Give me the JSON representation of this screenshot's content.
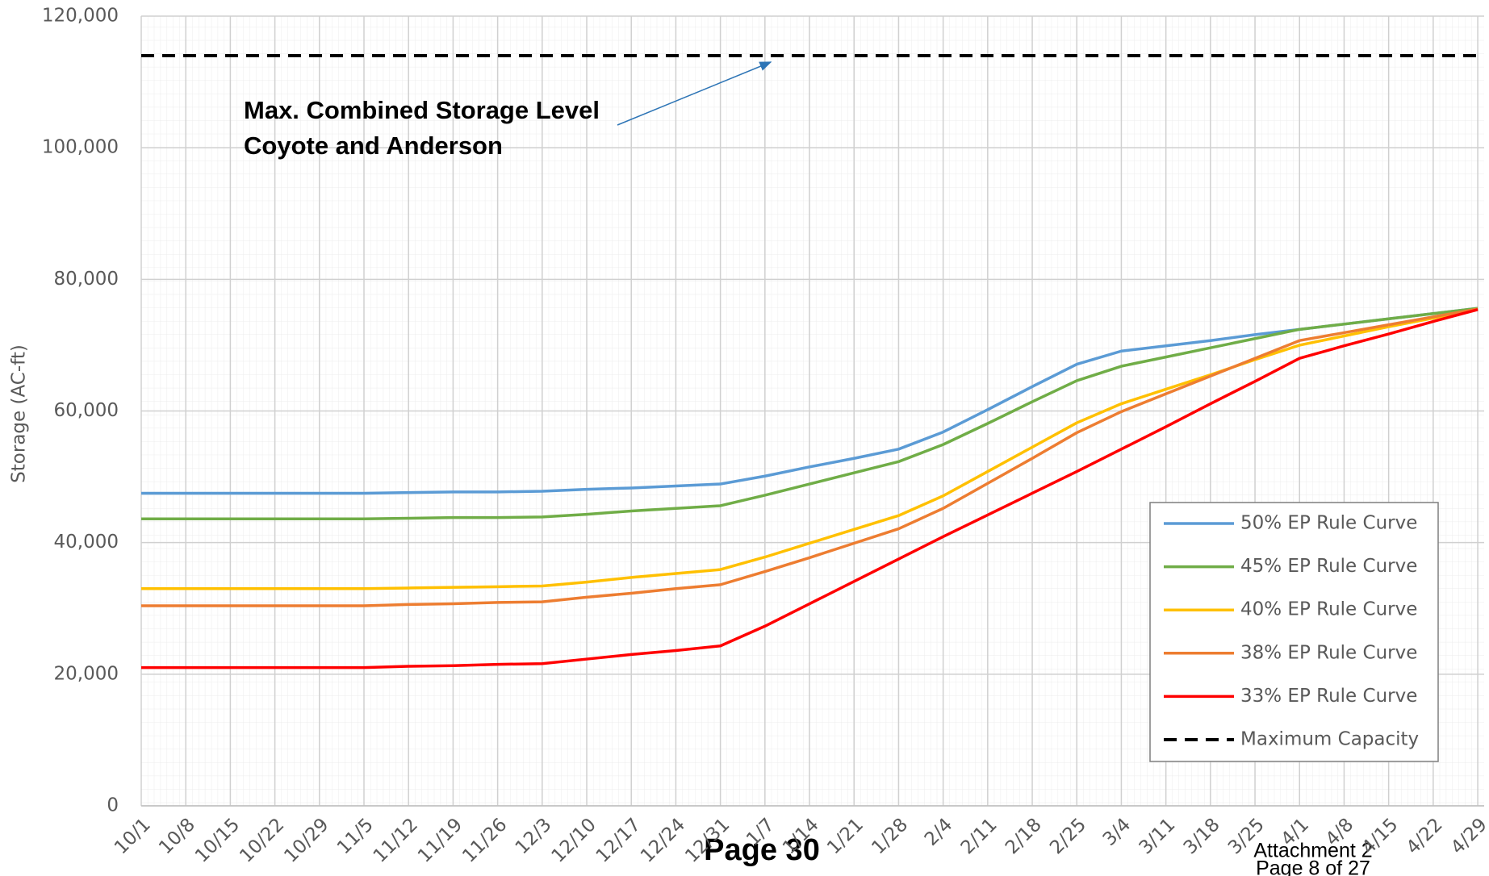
{
  "chart_data": {
    "type": "line",
    "y_axis_label": "Storage (AC-ft)",
    "annotation": [
      "Max. Combined Storage Level",
      "Coyote and Anderson"
    ],
    "categories": [
      "10/1",
      "10/8",
      "10/15",
      "10/22",
      "10/29",
      "11/5",
      "11/12",
      "11/19",
      "11/26",
      "12/3",
      "12/10",
      "12/17",
      "12/24",
      "12/31",
      "1/7",
      "1/14",
      "1/21",
      "1/28",
      "2/4",
      "2/11",
      "2/18",
      "2/25",
      "3/4",
      "3/11",
      "3/18",
      "3/25",
      "4/1",
      "4/8",
      "4/15",
      "4/22",
      "4/29"
    ],
    "series": [
      {
        "name": "50% EP Rule Curve",
        "color": "#5b9bd5",
        "values": [
          47500,
          47500,
          47500,
          47500,
          47500,
          47500,
          47600,
          47700,
          47700,
          47800,
          48100,
          48300,
          48600,
          48900,
          50100,
          51500,
          52800,
          54200,
          56800,
          60200,
          63700,
          67100,
          69100,
          69900,
          70700,
          71600,
          72400,
          73200,
          74000,
          74800,
          75600
        ]
      },
      {
        "name": "45% EP Rule Curve",
        "color": "#70ad47",
        "values": [
          43600,
          43600,
          43600,
          43600,
          43600,
          43600,
          43700,
          43800,
          43800,
          43900,
          44300,
          44800,
          45200,
          45600,
          47200,
          48900,
          50600,
          52300,
          54900,
          58100,
          61400,
          64600,
          66800,
          68200,
          69600,
          71000,
          72400,
          73200,
          74000,
          74800,
          75600
        ]
      },
      {
        "name": "40% EP Rule Curve",
        "color": "#ffc000",
        "values": [
          33000,
          33000,
          33000,
          33000,
          33000,
          33000,
          33100,
          33200,
          33300,
          33400,
          34000,
          34700,
          35300,
          35900,
          37800,
          39900,
          42000,
          44100,
          47100,
          50800,
          54500,
          58200,
          61100,
          63300,
          65500,
          67800,
          70000,
          71400,
          72800,
          74100,
          75500
        ]
      },
      {
        "name": "38% EP Rule Curve",
        "color": "#ed7d31",
        "values": [
          30400,
          30400,
          30400,
          30400,
          30400,
          30400,
          30600,
          30700,
          30900,
          31000,
          31700,
          32300,
          33000,
          33600,
          35600,
          37700,
          39900,
          42100,
          45200,
          49000,
          52800,
          56700,
          59900,
          62600,
          65300,
          68000,
          70700,
          71900,
          73100,
          74300,
          75500
        ]
      },
      {
        "name": "33% EP Rule Curve",
        "color": "#ff0000",
        "values": [
          21000,
          21000,
          21000,
          21000,
          21000,
          21000,
          21200,
          21300,
          21500,
          21600,
          22300,
          23000,
          23600,
          24300,
          27300,
          30700,
          34100,
          37500,
          40900,
          44200,
          47500,
          50800,
          54200,
          57600,
          61100,
          64500,
          68000,
          69900,
          71700,
          73600,
          75400
        ]
      },
      {
        "name": "Maximum Capacity",
        "color": "#000000",
        "dashed": true,
        "values": [
          114000,
          114000,
          114000,
          114000,
          114000,
          114000,
          114000,
          114000,
          114000,
          114000,
          114000,
          114000,
          114000,
          114000,
          114000,
          114000,
          114000,
          114000,
          114000,
          114000,
          114000,
          114000,
          114000,
          114000,
          114000,
          114000,
          114000,
          114000,
          114000,
          114000,
          114000
        ]
      }
    ],
    "ylim": [
      0,
      120000
    ],
    "yticks": [
      0,
      {
        "value": 20000,
        "label": "20,000"
      },
      {
        "value": 40000,
        "label": "40,000"
      },
      {
        "value": 60000,
        "label": "60,000"
      },
      {
        "value": 80000,
        "label": "80,000"
      },
      {
        "value": 100000,
        "label": "100,000"
      },
      {
        "value": 120000,
        "label": "120,000"
      }
    ],
    "grid": true,
    "legend": "lower right"
  },
  "footer": {
    "page": "Page 30",
    "attachment": "Attachment 2",
    "page_of": "Page 8 of 27"
  }
}
